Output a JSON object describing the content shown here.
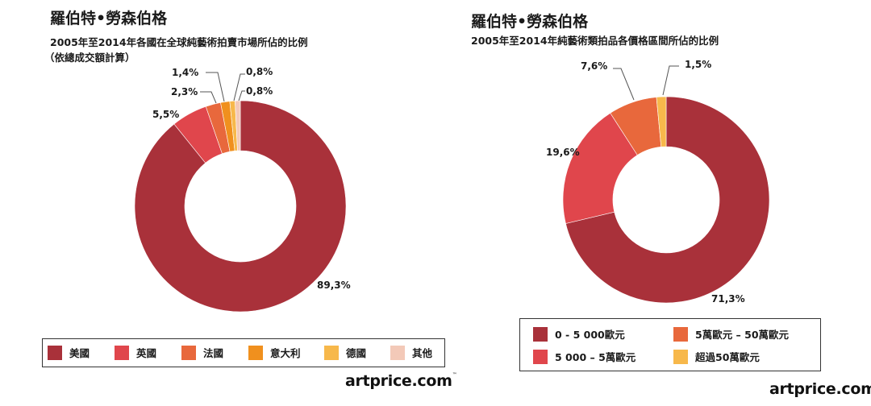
{
  "chart_data": [
    {
      "type": "pie",
      "style": "donut",
      "title": "羅伯特•勞森伯格",
      "subtitle": "2005年至2014年各國在全球純藝術拍賣市場所佔的比例",
      "subtitle2": "（依總成交額計算）",
      "categories": [
        "美國",
        "英國",
        "法國",
        "意大利",
        "德國",
        "其他"
      ],
      "values": [
        89.3,
        5.5,
        2.3,
        1.4,
        0.8,
        0.8
      ],
      "data_labels": [
        "89,3%",
        "5,5%",
        "2,3%",
        "1,4%",
        "0,8%",
        "0,8%"
      ],
      "colors": [
        "#a9313a",
        "#e0464c",
        "#e8683c",
        "#f0901e",
        "#f7b84b",
        "#f3c9b8"
      ],
      "legend_position": "bottom"
    },
    {
      "type": "pie",
      "style": "donut",
      "title": "羅伯特•勞森伯格",
      "subtitle": "2005年至2014年純藝術類拍品各價格區間所佔的比例",
      "categories": [
        "0 - 5 000歐元",
        "5 000 – 5萬歐元",
        "5萬歐元 – 50萬歐元",
        "超過50萬歐元"
      ],
      "values": [
        71.3,
        19.6,
        7.6,
        1.5
      ],
      "data_labels": [
        "71,3%",
        "19,6%",
        "7,6%",
        "1,5%"
      ],
      "colors": [
        "#a9313a",
        "#e0464c",
        "#e8683c",
        "#f7b84b"
      ],
      "legend_position": "bottom"
    }
  ],
  "source_logo": "artprice.com",
  "source_logo_mark": "™"
}
